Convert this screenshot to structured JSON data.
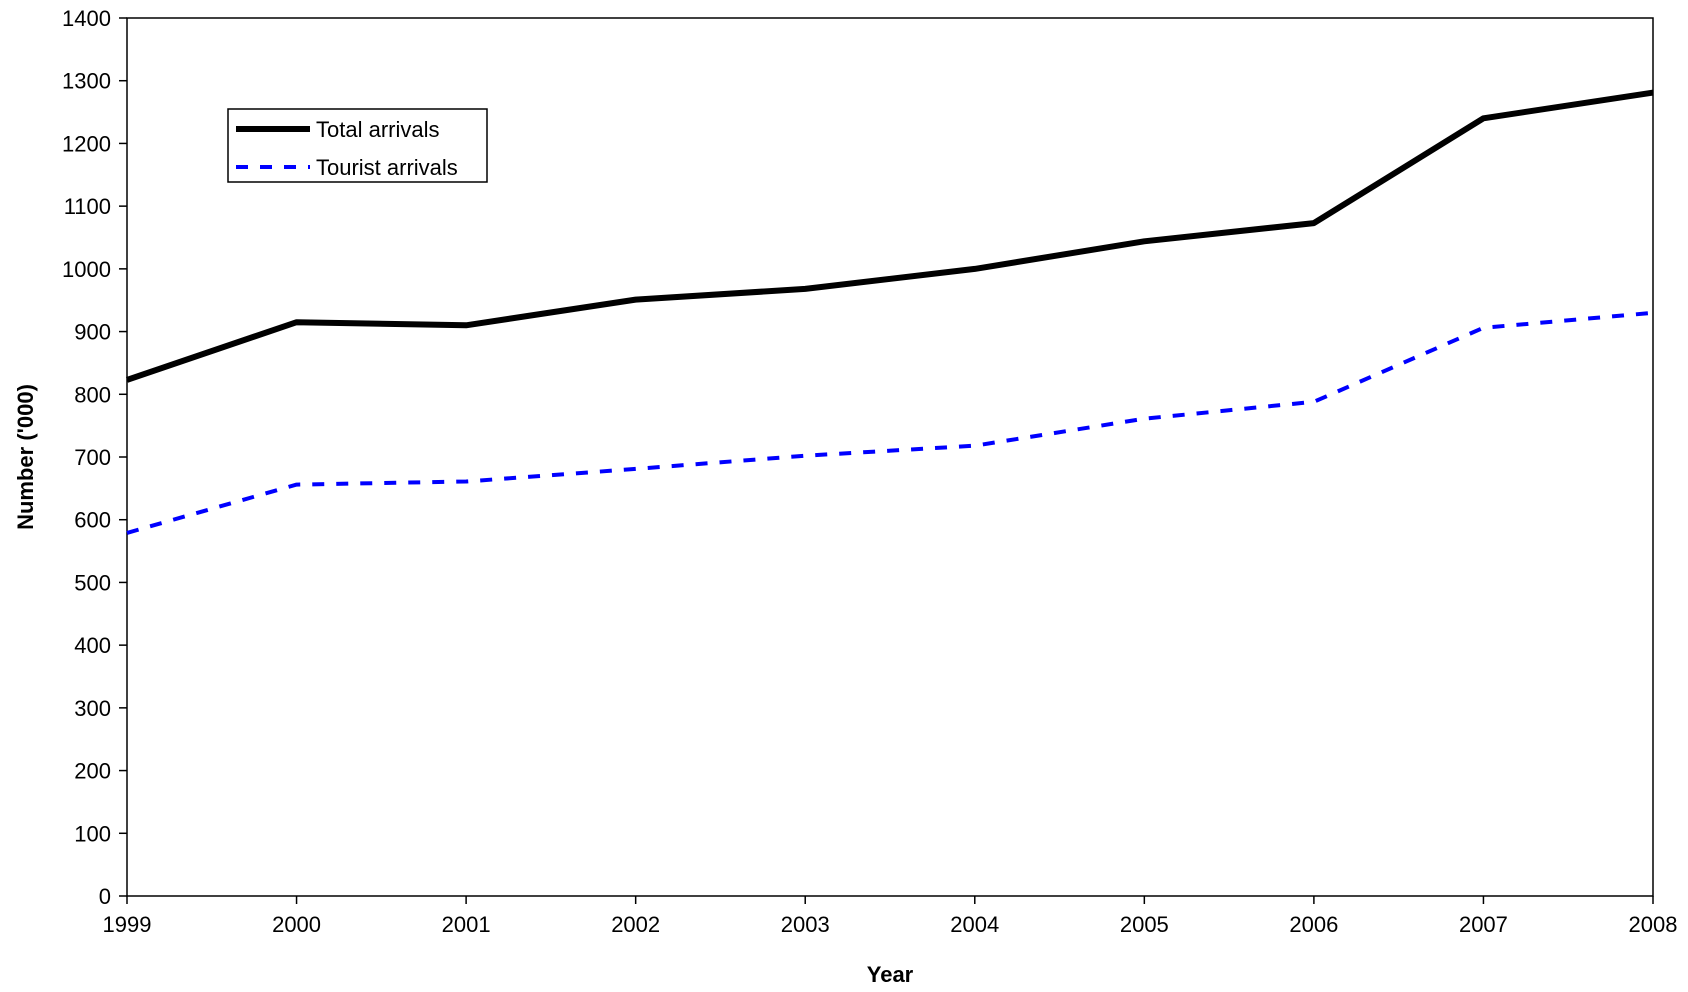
{
  "chart_data": {
    "type": "line",
    "title": "",
    "xlabel": "Year",
    "ylabel": "Number ('000)",
    "x": [
      1999,
      2000,
      2001,
      2002,
      2003,
      2004,
      2005,
      2006,
      2007,
      2008
    ],
    "ylim": [
      0,
      1400
    ],
    "y_ticks": [
      0,
      100,
      200,
      300,
      400,
      500,
      600,
      700,
      800,
      900,
      1000,
      1100,
      1200,
      1300,
      1400
    ],
    "grid": false,
    "legend_position": "top-left",
    "series": [
      {
        "name": "Total arrivals",
        "values": [
          823,
          915,
          910,
          951,
          968,
          1000,
          1044,
          1073,
          1240,
          1281
        ],
        "color": "#000000",
        "style": "solid"
      },
      {
        "name": "Tourist arrivals",
        "values": [
          579,
          656,
          661,
          681,
          702,
          718,
          761,
          788,
          906,
          930
        ],
        "color": "#0000ff",
        "style": "dashed"
      }
    ]
  }
}
